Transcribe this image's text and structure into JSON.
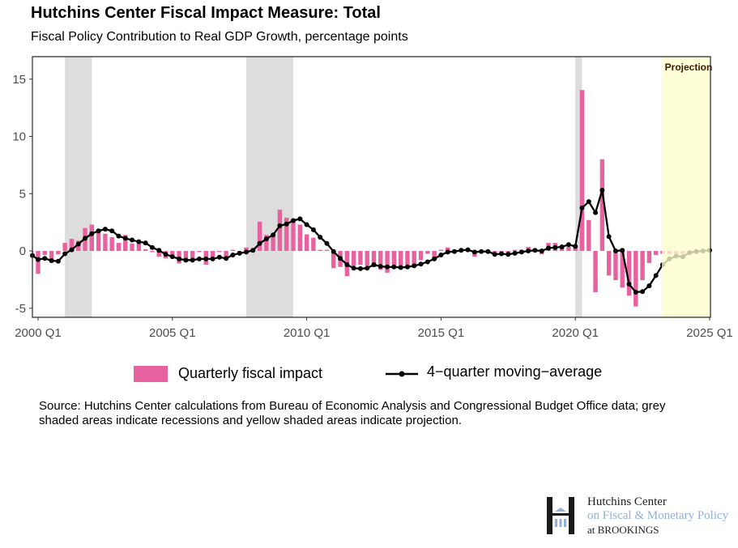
{
  "chart_data": {
    "type": "bar+line",
    "title": "Hutchins Center Fiscal Impact Measure: Total",
    "subtitle": "Fiscal Policy Contribution to Real GDP Growth, percentage points",
    "x_start": "1999 Q4",
    "x_tick_labels": [
      "2000 Q1",
      "2005 Q1",
      "2010 Q1",
      "2015 Q1",
      "2020 Q1",
      "2025 Q1"
    ],
    "y_tick_labels": [
      "-5",
      "0",
      "5",
      "10",
      "15"
    ],
    "ylim": [
      -5.8,
      17
    ],
    "xlim": [
      "2000 Q1",
      "2025 Q1"
    ],
    "grid": false,
    "series": [
      {
        "name": "Quarterly fiscal impact",
        "kind": "bar",
        "color": "#e8629f",
        "values": [
          -0.2,
          -2.0,
          -0.35,
          -1.0,
          -0.3,
          0.7,
          1.05,
          0.9,
          2.0,
          2.3,
          1.9,
          1.5,
          1.2,
          0.7,
          1.4,
          0.65,
          0.65,
          0.15,
          -0.1,
          -0.5,
          -0.65,
          -0.5,
          -1.1,
          -0.95,
          -0.8,
          -0.1,
          -1.2,
          -0.7,
          -0.1,
          -0.5,
          0.1,
          0,
          0.3,
          0,
          2.55,
          1.4,
          1.3,
          3.6,
          2.9,
          2.7,
          2.3,
          1.45,
          1.15,
          0.1,
          0.1,
          -1.5,
          -1.4,
          -2.2,
          -1.3,
          -1.2,
          -1.3,
          -1.4,
          -1.65,
          -1.9,
          -1.4,
          -1.5,
          -1.4,
          -1.3,
          -0.8,
          -0.25,
          -0.6,
          0.1,
          0.3,
          0,
          0,
          0,
          -0.5,
          0,
          0,
          -0.2,
          -0.1,
          -0.2,
          0.1,
          0.1,
          0.35,
          0.1,
          -0.3,
          0.7,
          0.7,
          0.35,
          0.35,
          0.45,
          14.05,
          2.7,
          -3.6,
          8.0,
          -2.15,
          -2.55,
          -3.2,
          -3.9,
          -4.85,
          -2.55,
          -1.05,
          -0.35,
          -0.25,
          -0.25,
          -0.25,
          -0.25,
          -0.1,
          -0.05,
          0,
          0
        ]
      },
      {
        "name": "4−quarter moving−average",
        "kind": "line",
        "color": "#000000",
        "values": [
          -0.4,
          -0.75,
          -0.65,
          -0.85,
          -0.9,
          -0.25,
          0.1,
          0.6,
          1.1,
          1.5,
          1.75,
          1.9,
          1.75,
          1.3,
          1.1,
          0.95,
          0.8,
          0.7,
          0.3,
          0.05,
          -0.3,
          -0.5,
          -0.7,
          -0.8,
          -0.8,
          -0.7,
          -0.7,
          -0.7,
          -0.55,
          -0.65,
          -0.35,
          -0.2,
          -0.1,
          0.05,
          0.65,
          1.05,
          1.4,
          2.2,
          2.35,
          2.65,
          2.8,
          2.3,
          1.85,
          1.2,
          0.65,
          -0.05,
          -0.65,
          -1.2,
          -1.5,
          -1.55,
          -1.5,
          -1.2,
          -1.35,
          -1.4,
          -1.4,
          -1.45,
          -1.4,
          -1.3,
          -1.15,
          -0.95,
          -0.7,
          -0.35,
          -0.1,
          -0.05,
          0.05,
          0.1,
          -0.1,
          -0.05,
          -0.05,
          -0.3,
          -0.25,
          -0.3,
          -0.2,
          -0.1,
          0,
          0.05,
          0,
          0.25,
          0.3,
          0.35,
          0.55,
          0.4,
          3.75,
          4.3,
          3.35,
          5.3,
          1.25,
          0,
          0.05,
          -2.9,
          -3.6,
          -3.55,
          -3.05,
          -2.15,
          -1.2,
          -0.7,
          -0.45,
          -0.5,
          -0.15,
          -0.05,
          0,
          0.05
        ]
      }
    ],
    "recessions": [
      [
        "2001 Q1",
        "2002 Q1"
      ],
      [
        "2007 Q4",
        "2009 Q3"
      ],
      [
        "2020 Q1",
        "2020 Q2"
      ]
    ],
    "recession_color": "#dddddd",
    "projection": {
      "label": "Projection",
      "start": "2023 Q2",
      "color": "#ffffcc"
    },
    "legend_position": "bottom"
  },
  "legend": {
    "bar_label": "Quarterly fiscal impact",
    "line_label": "4−quarter moving−average"
  },
  "source": "Source: Hutchins Center calculations from Bureau of Economic Analysis and Congressional Budget Office data; grey shaded areas indicate recessions and yellow shaded areas indicate projection.",
  "logo": {
    "line1": "Hutchins Center",
    "line2": "on Fiscal & Monetary Policy",
    "line3": "at BROOKINGS"
  }
}
